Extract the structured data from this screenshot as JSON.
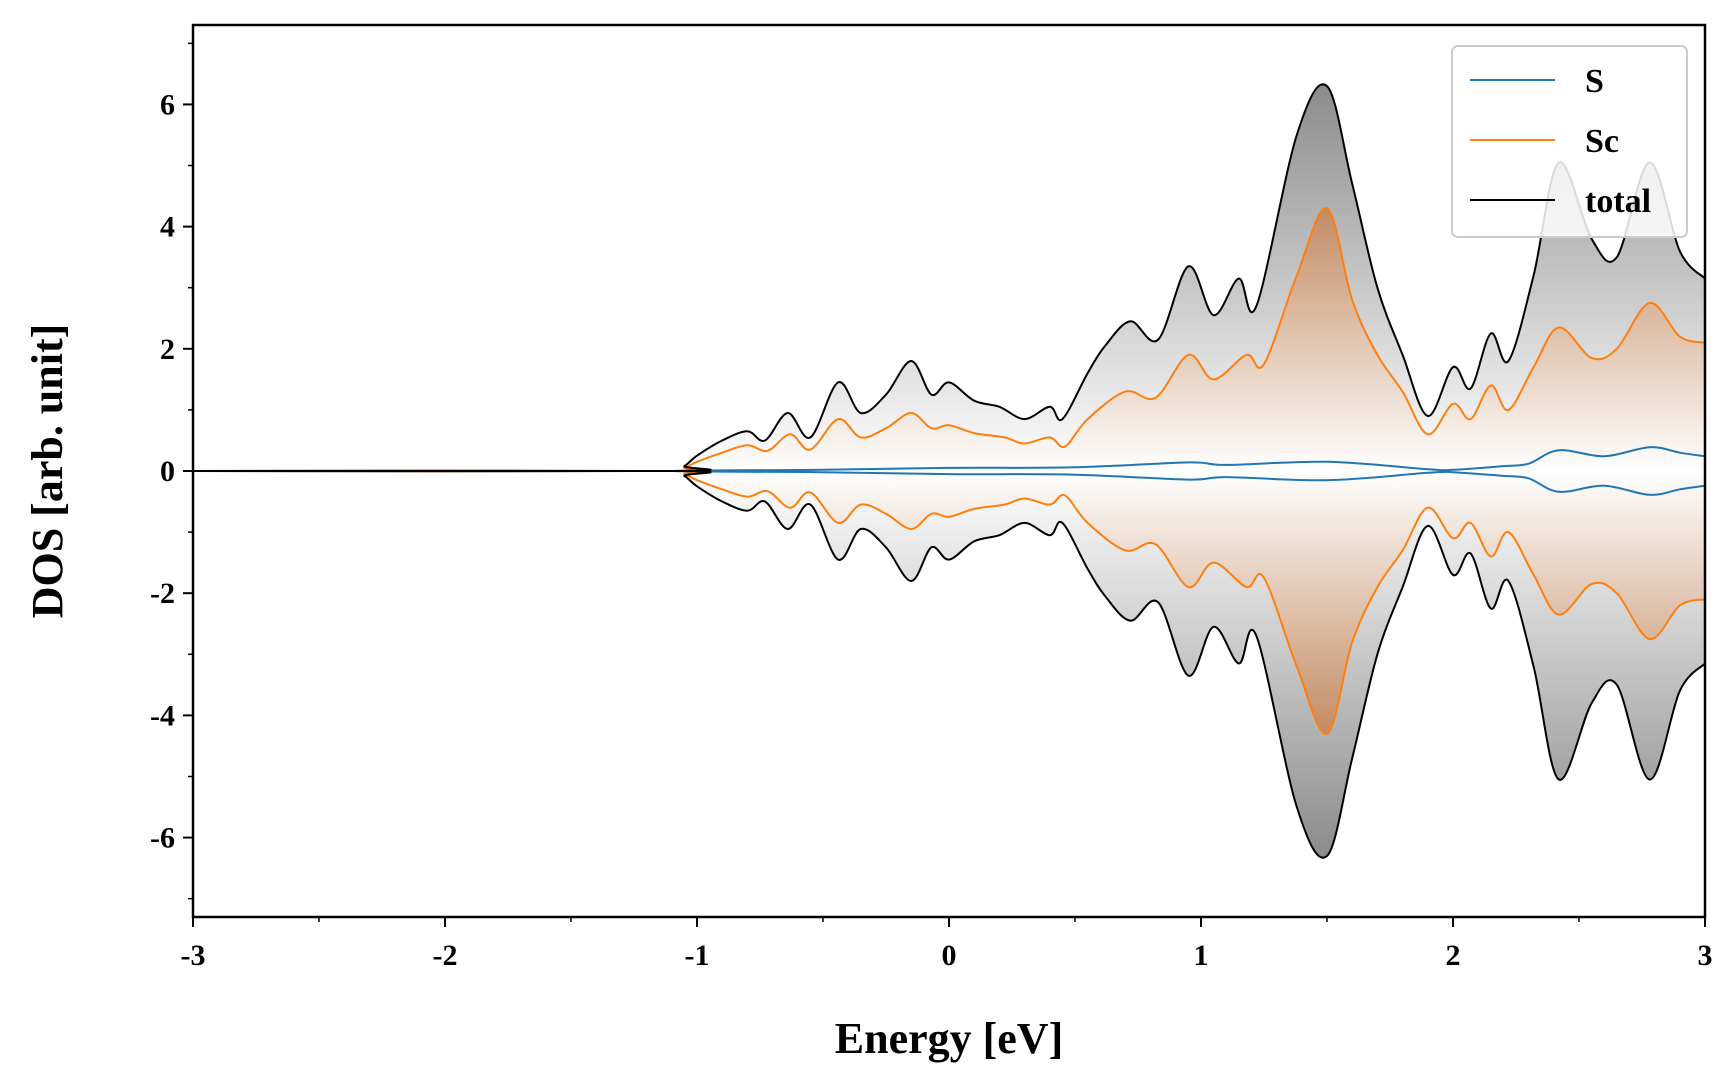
{
  "chart_data": {
    "type": "line",
    "title": "",
    "xlabel": "Energy [eV]",
    "ylabel": "DOS [arb. unit]",
    "xlim": [
      -3,
      3
    ],
    "ylim": [
      -7.3,
      7.3
    ],
    "x_ticks": [
      -3,
      -2,
      -1,
      0,
      1,
      2,
      3
    ],
    "x_tick_labels": [
      "-3",
      "-2",
      "-1",
      "0",
      "1",
      "2",
      "3"
    ],
    "y_ticks": [
      -6,
      -4,
      -2,
      0,
      2,
      4,
      6
    ],
    "y_tick_labels": [
      "-6",
      "-4",
      "-2",
      "0",
      "2",
      "4",
      "6"
    ],
    "grid": false,
    "legend_position": "top-right",
    "mirrored_about_zero": true,
    "colors": {
      "S": "#1f77b4",
      "Sc": "#ff7f0e",
      "total": "#000000"
    },
    "series": [
      {
        "name": "S",
        "x": [
          -3,
          -1.1,
          -1.0,
          -0.9,
          -0.5,
          0.0,
          0.5,
          0.95,
          1.1,
          1.5,
          1.9,
          2.0,
          2.2,
          2.3,
          2.42,
          2.6,
          2.78,
          2.9,
          3.0
        ],
        "values": [
          0,
          0,
          0.005,
          0.01,
          0.02,
          0.05,
          0.06,
          0.14,
          0.1,
          0.15,
          0.03,
          0.02,
          0.08,
          0.12,
          0.34,
          0.24,
          0.39,
          0.3,
          0.24
        ]
      },
      {
        "name": "Sc",
        "x": [
          -3,
          -1.1,
          -1.05,
          -1.0,
          -0.9,
          -0.8,
          -0.72,
          -0.63,
          -0.55,
          -0.44,
          -0.35,
          -0.25,
          -0.15,
          -0.07,
          0.0,
          0.1,
          0.22,
          0.3,
          0.4,
          0.46,
          0.55,
          0.7,
          0.82,
          0.95,
          1.05,
          1.18,
          1.25,
          1.38,
          1.5,
          1.6,
          1.7,
          1.8,
          1.9,
          2.0,
          2.07,
          2.15,
          2.22,
          2.32,
          2.42,
          2.55,
          2.65,
          2.78,
          2.9,
          3.0
        ],
        "values": [
          0,
          0,
          0.05,
          0.15,
          0.3,
          0.42,
          0.33,
          0.6,
          0.35,
          0.85,
          0.55,
          0.7,
          0.95,
          0.7,
          0.75,
          0.62,
          0.55,
          0.45,
          0.55,
          0.4,
          0.85,
          1.3,
          1.2,
          1.9,
          1.5,
          1.9,
          1.75,
          3.2,
          4.3,
          2.8,
          1.9,
          1.3,
          0.6,
          1.1,
          0.85,
          1.4,
          1.0,
          1.7,
          2.35,
          1.85,
          2.0,
          2.75,
          2.2,
          2.1
        ]
      },
      {
        "name": "total",
        "x": [
          -3,
          -1.1,
          -1.05,
          -1.0,
          -0.9,
          -0.8,
          -0.73,
          -0.64,
          -0.55,
          -0.44,
          -0.35,
          -0.25,
          -0.15,
          -0.07,
          0.0,
          0.1,
          0.2,
          0.3,
          0.4,
          0.45,
          0.55,
          0.62,
          0.72,
          0.83,
          0.95,
          1.05,
          1.15,
          1.22,
          1.38,
          1.5,
          1.6,
          1.7,
          1.8,
          1.9,
          2.0,
          2.07,
          2.15,
          2.22,
          2.32,
          2.42,
          2.55,
          2.65,
          2.78,
          2.9,
          3.0
        ],
        "values": [
          0,
          0,
          0.08,
          0.25,
          0.5,
          0.65,
          0.5,
          0.95,
          0.55,
          1.45,
          0.95,
          1.25,
          1.8,
          1.25,
          1.45,
          1.15,
          1.05,
          0.85,
          1.05,
          0.85,
          1.6,
          2.05,
          2.45,
          2.15,
          3.35,
          2.55,
          3.15,
          2.7,
          5.5,
          6.3,
          4.7,
          3.0,
          1.9,
          0.9,
          1.7,
          1.35,
          2.25,
          1.8,
          3.2,
          5.05,
          3.8,
          3.5,
          5.05,
          3.6,
          3.15
        ]
      }
    ]
  }
}
